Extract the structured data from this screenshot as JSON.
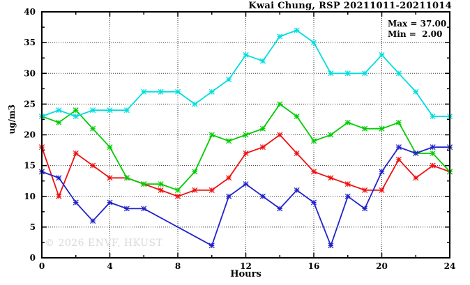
{
  "figure": {
    "title": "Kwai Chung, RSP 20211011-20211014",
    "annotation": {
      "max_label": "Max = 37.00",
      "min_label": "Min =  2.00"
    },
    "watermark": "© 2026 ENVF, HKUST",
    "background_color": "#ffffff",
    "border_color": "#000000",
    "grid_color": "#333333"
  },
  "chart_data": {
    "type": "line",
    "title": "Kwai Chung, RSP 20211011-20211014",
    "xlabel": "Hours",
    "ylabel": "ug/m3",
    "xlim": [
      0,
      24
    ],
    "ylim": [
      0,
      40
    ],
    "x_major_ticks": [
      0,
      4,
      8,
      12,
      16,
      20,
      24
    ],
    "x_minor_ticks": [
      2,
      6,
      10,
      14,
      18,
      22
    ],
    "y_major_ticks": [
      0,
      5,
      10,
      15,
      20,
      25,
      30,
      35,
      40
    ],
    "y_minor_ticks": [
      2.5,
      7.5,
      12.5,
      17.5,
      22.5,
      27.5,
      32.5,
      37.5
    ],
    "grid": "dotted at interior major ticks",
    "legend_position": "none",
    "marker": "star",
    "max_value": 37.0,
    "min_value": 2.0,
    "x": [
      0,
      1,
      2,
      3,
      4,
      5,
      6,
      7,
      8,
      9,
      10,
      11,
      12,
      13,
      14,
      15,
      16,
      17,
      18,
      19,
      20,
      21,
      22,
      23,
      24
    ],
    "series": [
      {
        "name": "red-line",
        "color": "#ee1111",
        "values": [
          18,
          10,
          17,
          15,
          13,
          13,
          12,
          11,
          10,
          11,
          11,
          13,
          17,
          18,
          20,
          17,
          14,
          13,
          12,
          11,
          11,
          16,
          13,
          15,
          14
        ]
      },
      {
        "name": "green-line",
        "color": "#00cc00",
        "values": [
          23,
          22,
          24,
          21,
          18,
          13,
          12,
          12,
          11,
          14,
          20,
          19,
          20,
          21,
          25,
          23,
          19,
          20,
          22,
          21,
          21,
          22,
          17,
          17,
          14
        ]
      },
      {
        "name": "blue-line",
        "color": "#2222cc",
        "values": [
          14,
          13,
          9,
          6,
          9,
          8,
          8,
          null,
          null,
          null,
          2,
          10,
          12,
          10,
          8,
          11,
          9,
          2,
          10,
          8,
          14,
          18,
          17,
          18,
          18
        ]
      },
      {
        "name": "cyan-line",
        "color": "#00dddd",
        "values": [
          23,
          24,
          23,
          24,
          24,
          24,
          27,
          27,
          27,
          25,
          27,
          29,
          33,
          32,
          36,
          37,
          35,
          30,
          30,
          30,
          33,
          30,
          27,
          23,
          23
        ]
      }
    ]
  }
}
